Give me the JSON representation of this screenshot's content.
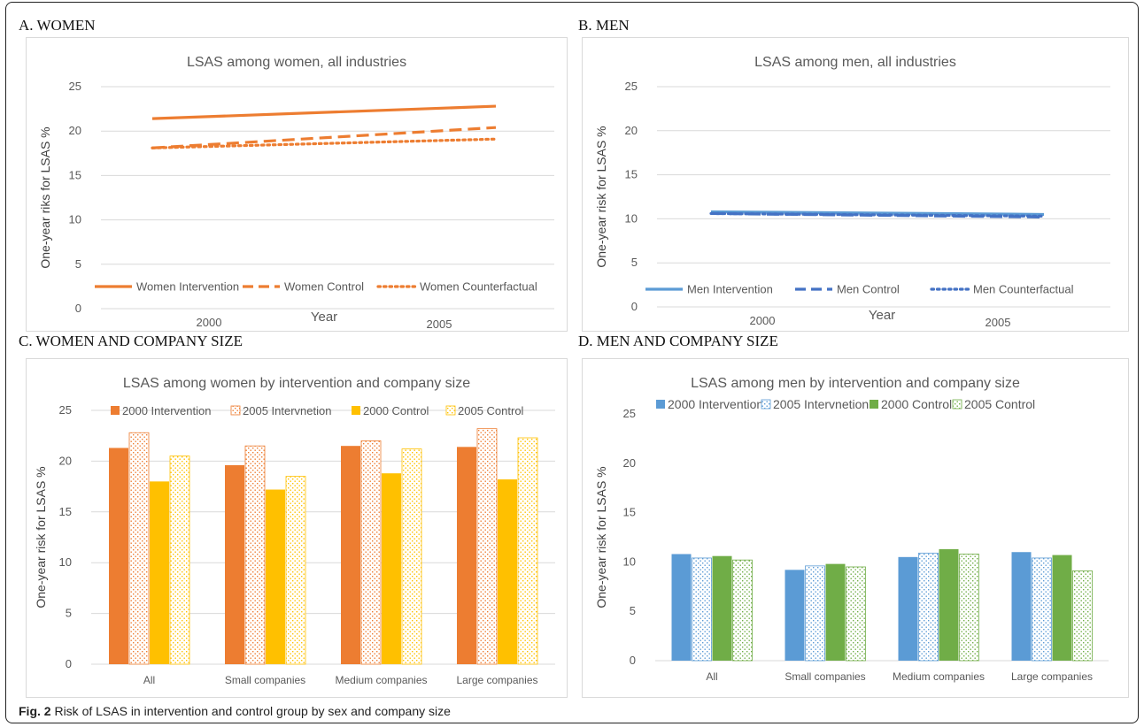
{
  "colors": {
    "women_intervention": "#ED7D31",
    "women_control": "#FFC000",
    "men_intervention": "#5B9BD5",
    "men_control": "#70AD47",
    "gridline": "#d9d9d9",
    "axis_text": "#595959"
  },
  "panels": {
    "a": "A. WOMEN",
    "b": "B. MEN",
    "c": "C. WOMEN AND COMPANY SIZE",
    "d": "D. MEN AND COMPANY SIZE"
  },
  "caption": {
    "label": "Fig. 2",
    "text": " Risk of LSAS in intervention and control group by sex and company size"
  },
  "chart_data": [
    {
      "id": "a",
      "type": "line",
      "title": "LSAS among women, all industries",
      "xlabel": "Year",
      "ylabel": "One-year riks for LSAS  %",
      "x": [
        "2000",
        "2005"
      ],
      "ylim": [
        0,
        25
      ],
      "yticks": [
        0,
        5,
        10,
        15,
        20,
        25
      ],
      "grid": true,
      "legend_position": "bottom",
      "series": [
        {
          "name": "Women Intervention",
          "values": [
            21.4,
            22.8
          ],
          "style": "solid",
          "color": "#ED7D31"
        },
        {
          "name": "Women Control",
          "values": [
            18.1,
            20.4
          ],
          "style": "dashed",
          "color": "#ED7D31"
        },
        {
          "name": "Women Counterfactual",
          "values": [
            18.1,
            19.1
          ],
          "style": "dotted",
          "color": "#ED7D31"
        }
      ]
    },
    {
      "id": "b",
      "type": "line",
      "title": "LSAS among men, all industries",
      "xlabel": "Year",
      "ylabel": "One-year risk for LSAS  %",
      "x": [
        "2000",
        "2005"
      ],
      "ylim": [
        0,
        25
      ],
      "yticks": [
        0,
        5,
        10,
        15,
        20,
        25
      ],
      "grid": true,
      "legend_position": "bottom",
      "series": [
        {
          "name": "Men Intervention",
          "values": [
            10.8,
            10.5
          ],
          "style": "solid",
          "color": "#5B9BD5"
        },
        {
          "name": "Men Control",
          "values": [
            10.6,
            10.2
          ],
          "style": "dashed",
          "color": "#4472C4"
        },
        {
          "name": "Men Counterfactual",
          "values": [
            10.6,
            10.3
          ],
          "style": "dotted",
          "color": "#4472C4"
        }
      ]
    },
    {
      "id": "c",
      "type": "bar",
      "title": "LSAS among women by intervention and company size",
      "xlabel": "",
      "ylabel": "One-year risk for LSAS  %",
      "categories": [
        "All",
        "Small companies",
        "Medium companies",
        "Large companies"
      ],
      "ylim": [
        0,
        25
      ],
      "yticks": [
        0,
        5,
        10,
        15,
        20,
        25
      ],
      "grid": true,
      "legend_position": "top",
      "series": [
        {
          "name": "2000 Intervention",
          "values": [
            21.3,
            19.6,
            21.5,
            21.4
          ],
          "color": "#ED7D31",
          "pattern": false
        },
        {
          "name": "2005 Intervnetion",
          "values": [
            22.8,
            21.5,
            22.0,
            23.2
          ],
          "color": "#ED7D31",
          "pattern": true
        },
        {
          "name": "2000 Control",
          "values": [
            18.0,
            17.2,
            18.8,
            18.2
          ],
          "color": "#FFC000",
          "pattern": false
        },
        {
          "name": "2005 Control",
          "values": [
            20.5,
            18.5,
            21.2,
            22.3
          ],
          "color": "#FFC000",
          "pattern": true
        }
      ]
    },
    {
      "id": "d",
      "type": "bar",
      "title": "LSAS among men by intervention and company size",
      "xlabel": "",
      "ylabel": "One-year risk for LSAS  %",
      "categories": [
        "All",
        "Small companies",
        "Medium companies",
        "Large companies"
      ],
      "ylim": [
        0,
        25
      ],
      "yticks": [
        0,
        5,
        10,
        15,
        20,
        25
      ],
      "grid": false,
      "legend_position": "top",
      "series": [
        {
          "name": "2000 Intervention",
          "values": [
            10.8,
            9.2,
            10.5,
            11.0
          ],
          "color": "#5B9BD5",
          "pattern": false
        },
        {
          "name": "2005 Intervnetion",
          "values": [
            10.4,
            9.6,
            10.9,
            10.4
          ],
          "color": "#5B9BD5",
          "pattern": true
        },
        {
          "name": "2000 Control",
          "values": [
            10.6,
            9.8,
            11.3,
            10.7
          ],
          "color": "#70AD47",
          "pattern": false
        },
        {
          "name": "2005 Control",
          "values": [
            10.2,
            9.5,
            10.8,
            9.1
          ],
          "color": "#70AD47",
          "pattern": true
        }
      ]
    }
  ]
}
